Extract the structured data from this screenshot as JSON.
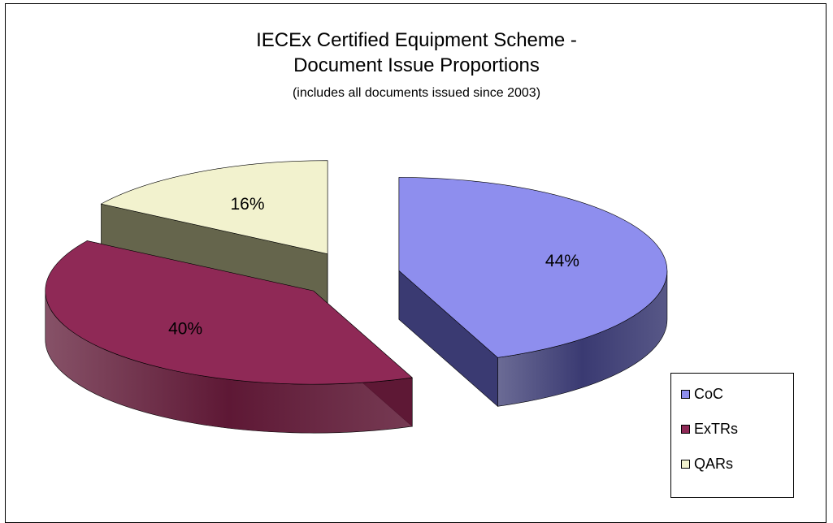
{
  "chart_data": {
    "type": "pie",
    "title": "IECEx Certified Equipment Scheme -",
    "title_line2": "Document Issue Proportions",
    "subtitle": "(includes all documents issued since 2003)",
    "three_d": true,
    "exploded": true,
    "legend_position": "bottom-right",
    "slices": [
      {
        "name": "CoC",
        "label": "44%",
        "value": 44,
        "color": "#8E8EEE",
        "side_color": "#3A3A72"
      },
      {
        "name": "ExTRs",
        "label": "40%",
        "value": 40,
        "color": "#8F2956",
        "side_color": "#5E1835"
      },
      {
        "name": "QARs",
        "label": "16%",
        "value": 16,
        "color": "#F2F2CE",
        "side_color": "#65654C"
      }
    ]
  }
}
